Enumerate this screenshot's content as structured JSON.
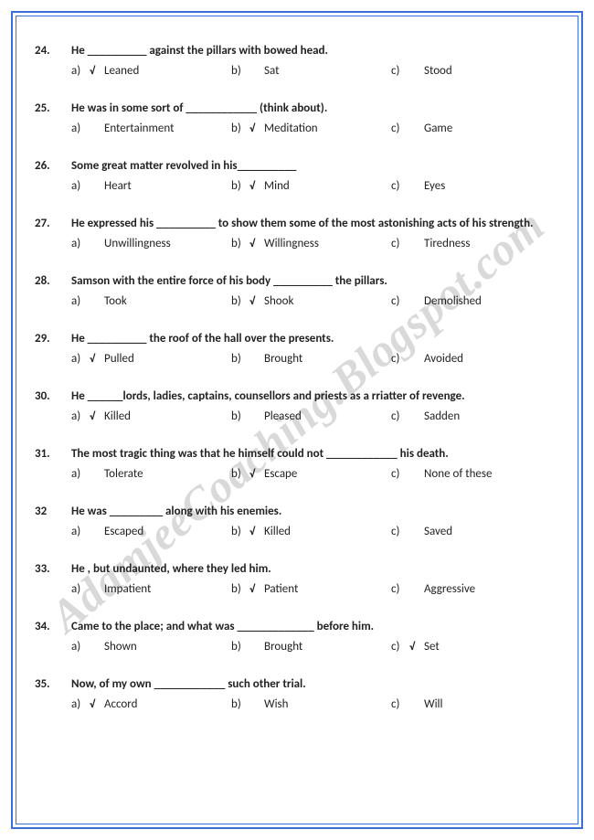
{
  "watermark": "AdamjeeCoaching.Blogspot.com",
  "tickmark": "√",
  "questions": [
    {
      "num": "24.",
      "stem": "He __________ against the pillars with bowed head.",
      "options": [
        {
          "letter": "a)",
          "tick": true,
          "text": "Leaned"
        },
        {
          "letter": "b)",
          "tick": false,
          "text": "Sat"
        },
        {
          "letter": "c)",
          "tick": false,
          "text": "Stood"
        }
      ]
    },
    {
      "num": "25.",
      "stem": "He was in some sort of ____________ (think about).",
      "options": [
        {
          "letter": "a)",
          "tick": false,
          "text": "Entertainment"
        },
        {
          "letter": "b)",
          "tick": true,
          "text": "Meditation"
        },
        {
          "letter": "c)",
          "tick": false,
          "text": "Game"
        }
      ]
    },
    {
      "num": "26.",
      "stem": "Some great matter revolved in his__________",
      "options": [
        {
          "letter": "a)",
          "tick": false,
          "text": "Heart"
        },
        {
          "letter": "b)",
          "tick": true,
          "text": "Mind"
        },
        {
          "letter": "c)",
          "tick": false,
          "text": "Eyes"
        }
      ]
    },
    {
      "num": "27.",
      "stem": "He expressed his __________ to show them some of the most astonishing acts of his strength.",
      "options": [
        {
          "letter": "a)",
          "tick": false,
          "text": "Unwillingness"
        },
        {
          "letter": "b)",
          "tick": true,
          "text": "Willingness"
        },
        {
          "letter": "c)",
          "tick": false,
          "text": "Tiredness"
        }
      ]
    },
    {
      "num": "28.",
      "stem": "Samson with the entire force of his body __________ the pillars.",
      "options": [
        {
          "letter": "a)",
          "tick": false,
          "text": "Took"
        },
        {
          "letter": "b)",
          "tick": true,
          "text": "Shook"
        },
        {
          "letter": "c)",
          "tick": false,
          "text": "Demolished"
        }
      ]
    },
    {
      "num": "29.",
      "stem": "He __________ the roof of the hall over the presents.",
      "options": [
        {
          "letter": "a)",
          "tick": true,
          "text": "Pulled"
        },
        {
          "letter": "b)",
          "tick": false,
          "text": "Brought"
        },
        {
          "letter": "c)",
          "tick": false,
          "text": "Avoided"
        }
      ]
    },
    {
      "num": "30.",
      "stem": "He ______lords, ladies, captains, counsellors and priests as a rriatter of revenge.",
      "options": [
        {
          "letter": "a)",
          "tick": true,
          "text": "Killed"
        },
        {
          "letter": "b)",
          "tick": false,
          "text": "Pleased"
        },
        {
          "letter": "c)",
          "tick": false,
          "text": "Sadden"
        }
      ]
    },
    {
      "num": "31.",
      "stem": "The most tragic thing was that he himself could not ____________ his death.",
      "options": [
        {
          "letter": "a)",
          "tick": false,
          "text": "Tolerate"
        },
        {
          "letter": "b)",
          "tick": true,
          "text": "Escape"
        },
        {
          "letter": "c)",
          "tick": false,
          "text": "None of these"
        }
      ]
    },
    {
      "num": "32",
      "stem": " He was _________ along with his enemies.",
      "options": [
        {
          "letter": "a)",
          "tick": false,
          "text": "Escaped"
        },
        {
          "letter": "b)",
          "tick": true,
          "text": "Killed"
        },
        {
          "letter": "c)",
          "tick": false,
          "text": "Saved"
        }
      ]
    },
    {
      "num": "33.",
      "stem": "He , but undaunted, where they led him.",
      "options": [
        {
          "letter": "a)",
          "tick": false,
          "text": "Impatient"
        },
        {
          "letter": "b)",
          "tick": true,
          "text": "Patient"
        },
        {
          "letter": "c)",
          "tick": false,
          "text": "Aggressive"
        }
      ]
    },
    {
      "num": "34.",
      "stem": "Came to the place; and what was _____________ before him.",
      "options": [
        {
          "letter": "a)",
          "tick": false,
          "text": "Shown"
        },
        {
          "letter": "b)",
          "tick": false,
          "text": "Brought"
        },
        {
          "letter": "c)",
          "tick": true,
          "text": "Set"
        }
      ]
    },
    {
      "num": "35.",
      "stem": "Now, of my own ____________ such other trial.",
      "options": [
        {
          "letter": "a)",
          "tick": true,
          "text": "Accord"
        },
        {
          "letter": "b)",
          "tick": false,
          "text": "Wish"
        },
        {
          "letter": "c)",
          "tick": false,
          "text": "Will"
        }
      ]
    }
  ]
}
